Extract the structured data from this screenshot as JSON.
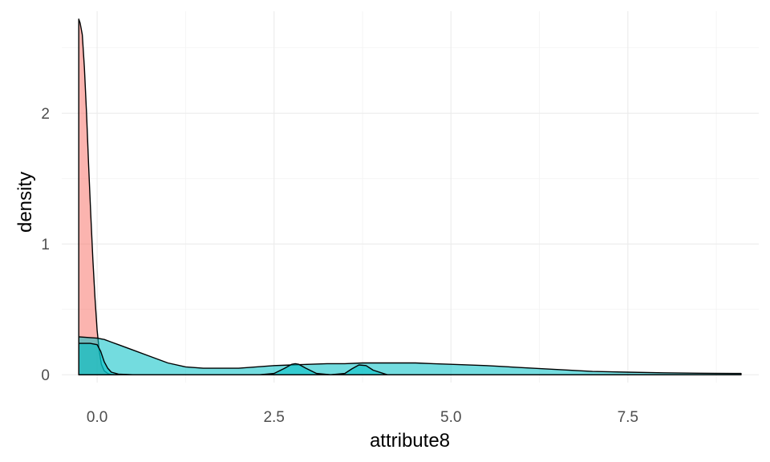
{
  "chart_data": {
    "type": "area",
    "xlabel": "attribute8",
    "ylabel": "density",
    "xlim": [
      -0.5,
      9.35
    ],
    "ylim": [
      -0.06,
      2.78
    ],
    "x_ticks": [
      0,
      2.5,
      5,
      7.5
    ],
    "x_tick_labels": [
      "0.0",
      "2.5",
      "5.0",
      "7.5"
    ],
    "y_ticks": [
      0,
      1,
      2
    ],
    "y_tick_labels": [
      "0",
      "1",
      "2"
    ],
    "grid": true,
    "legend": "none",
    "series": [
      {
        "fill": "#F8766D",
        "x": [
          -0.26,
          -0.24,
          -0.21,
          -0.18,
          -0.15,
          -0.12,
          -0.09,
          -0.06,
          -0.03,
          0.0,
          0.03,
          0.06,
          0.1,
          0.15,
          0.2,
          0.25,
          0.3
        ],
        "y": [
          2.72,
          2.69,
          2.6,
          2.35,
          2.0,
          1.6,
          1.22,
          0.88,
          0.58,
          0.34,
          0.18,
          0.08,
          0.03,
          0.01,
          0.0,
          0.0,
          0.0
        ]
      },
      {
        "fill": "#00BFC4",
        "x": [
          -0.26,
          0.0,
          0.1,
          0.2,
          0.3,
          0.5,
          0.75,
          1.0,
          1.25,
          1.5,
          1.75,
          2.0,
          2.25,
          2.5,
          2.75,
          3.0,
          3.25,
          3.5,
          3.75,
          4.0,
          4.25,
          4.5,
          4.75,
          5.0,
          5.5,
          6.0,
          6.5,
          7.0,
          7.5,
          8.0,
          8.5,
          9.0,
          9.1
        ],
        "y": [
          0.29,
          0.28,
          0.27,
          0.25,
          0.23,
          0.19,
          0.14,
          0.09,
          0.06,
          0.05,
          0.05,
          0.05,
          0.06,
          0.07,
          0.075,
          0.08,
          0.085,
          0.085,
          0.09,
          0.09,
          0.09,
          0.09,
          0.085,
          0.08,
          0.07,
          0.055,
          0.04,
          0.025,
          0.02,
          0.015,
          0.012,
          0.01,
          0.01
        ]
      },
      {
        "fill": "#00BFC4",
        "x": [
          -0.26,
          -0.1,
          0.0,
          0.05,
          0.1,
          0.15,
          0.2,
          0.3,
          0.5,
          1.0,
          1.5,
          2.0,
          2.3,
          2.5,
          2.65,
          2.75,
          2.8,
          2.85,
          2.95,
          3.1,
          3.3,
          3.5,
          3.6,
          3.7,
          3.8,
          3.9,
          4.1,
          4.5,
          5.0,
          6.0,
          7.0,
          8.0,
          9.1
        ],
        "y": [
          0.24,
          0.24,
          0.23,
          0.18,
          0.1,
          0.05,
          0.02,
          0.005,
          0.0,
          0.0,
          0.0,
          0.0,
          0.0,
          0.01,
          0.05,
          0.08,
          0.085,
          0.08,
          0.05,
          0.01,
          0.0,
          0.01,
          0.045,
          0.075,
          0.07,
          0.035,
          0.0,
          0.0,
          0.0,
          0.0,
          0.0,
          0.0,
          0.0
        ]
      }
    ]
  }
}
